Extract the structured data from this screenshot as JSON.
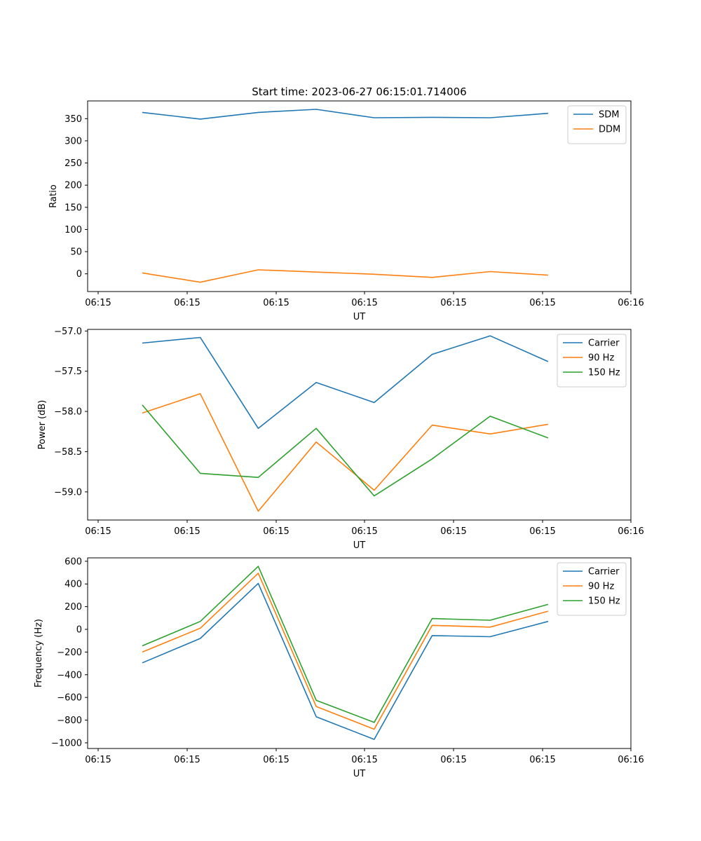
{
  "figure_title": "Start time: 2023-06-27 06:15:01.714006",
  "chart_data": [
    {
      "type": "line",
      "title": "Start time: 2023-06-27 06:15:01.714006",
      "xlabel": "UT",
      "ylabel": "Ratio",
      "xticks": [
        "06:15",
        "06:15",
        "06:15",
        "06:15",
        "06:15",
        "06:15",
        "06:16"
      ],
      "yticks": [
        0,
        50,
        100,
        150,
        200,
        250,
        300,
        350
      ],
      "ylim": [
        -40,
        390
      ],
      "legend_position": "top-right",
      "grid": false,
      "series": [
        {
          "name": "SDM",
          "color": "#1f77b4",
          "values": [
            364,
            349,
            364,
            371,
            352,
            353,
            352,
            362
          ]
        },
        {
          "name": "DDM",
          "color": "#ff7f0e",
          "values": [
            2,
            -19,
            9,
            4,
            -1,
            -8,
            5,
            -3
          ]
        }
      ]
    },
    {
      "type": "line",
      "xlabel": "UT",
      "ylabel": "Power (dB)",
      "xticks": [
        "06:15",
        "06:15",
        "06:15",
        "06:15",
        "06:15",
        "06:15",
        "06:16"
      ],
      "yticks": [
        "−59.0",
        "−58.5",
        "−58.0",
        "−57.5",
        "−57.0"
      ],
      "ylim": [
        -59.35,
        -56.98
      ],
      "legend_position": "top-right",
      "grid": false,
      "series": [
        {
          "name": "Carrier",
          "color": "#1f77b4",
          "values": [
            -57.15,
            -57.08,
            -58.21,
            -57.64,
            -57.89,
            -57.29,
            -57.06,
            -57.38
          ]
        },
        {
          "name": "90 Hz",
          "color": "#ff7f0e",
          "values": [
            -58.02,
            -57.78,
            -59.24,
            -58.38,
            -58.98,
            -58.17,
            -58.28,
            -58.16
          ]
        },
        {
          "name": "150 Hz",
          "color": "#2ca02c",
          "values": [
            -57.92,
            -58.77,
            -58.82,
            -58.21,
            -59.05,
            -58.59,
            -58.06,
            -58.33
          ]
        }
      ]
    },
    {
      "type": "line",
      "xlabel": "UT",
      "ylabel": "Frequency (Hz)",
      "xticks": [
        "06:15",
        "06:15",
        "06:15",
        "06:15",
        "06:15",
        "06:15",
        "06:16"
      ],
      "yticks": [
        "−1000",
        "−800",
        "−600",
        "−400",
        "−200",
        "0",
        "200",
        "400",
        "600"
      ],
      "ylim": [
        -1050,
        630
      ],
      "legend_position": "top-right",
      "grid": false,
      "series": [
        {
          "name": "Carrier",
          "color": "#1f77b4",
          "values": [
            -295,
            -80,
            405,
            -770,
            -970,
            -55,
            -65,
            70
          ]
        },
        {
          "name": "90 Hz",
          "color": "#ff7f0e",
          "values": [
            -200,
            10,
            495,
            -680,
            -880,
            35,
            20,
            160
          ]
        },
        {
          "name": "150 Hz",
          "color": "#2ca02c",
          "values": [
            -145,
            70,
            555,
            -625,
            -820,
            95,
            80,
            220
          ]
        }
      ]
    }
  ]
}
